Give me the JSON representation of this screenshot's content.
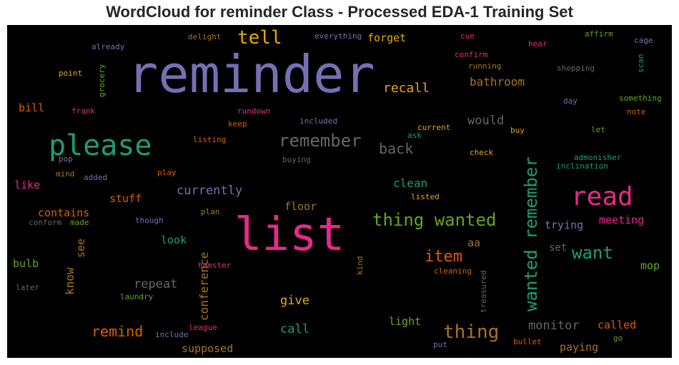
{
  "title": "WordCloud for reminder Class - Processed EDA-1 Training Set",
  "chart_data": {
    "type": "wordcloud",
    "background": "#000000",
    "palette": [
      "#7570b3",
      "#e7298a",
      "#1b9e77",
      "#66a61e",
      "#d95f02",
      "#e6ab02",
      "#a6761d",
      "#666666"
    ],
    "words": [
      {
        "text": "reminder"
      },
      {
        "text": "list"
      },
      {
        "text": "please"
      },
      {
        "text": "read"
      },
      {
        "text": "wanted remember"
      },
      {
        "text": "thing wanted"
      },
      {
        "text": "tell"
      },
      {
        "text": "remember"
      },
      {
        "text": "thing"
      },
      {
        "text": "item"
      },
      {
        "text": "want"
      },
      {
        "text": "back"
      },
      {
        "text": "recall"
      },
      {
        "text": "remind"
      },
      {
        "text": "currently"
      },
      {
        "text": "bathroom"
      },
      {
        "text": "would"
      },
      {
        "text": "forget"
      },
      {
        "text": "repeat"
      },
      {
        "text": "give"
      },
      {
        "text": "monitor"
      },
      {
        "text": "conference"
      },
      {
        "text": "clean"
      },
      {
        "text": "call"
      },
      {
        "text": "stuff"
      },
      {
        "text": "know"
      },
      {
        "text": "contains"
      },
      {
        "text": "see"
      },
      {
        "text": "look"
      },
      {
        "text": "trying"
      },
      {
        "text": "meeting"
      },
      {
        "text": "called"
      },
      {
        "text": "supposed"
      },
      {
        "text": "floor"
      },
      {
        "text": "light"
      },
      {
        "text": "paying"
      },
      {
        "text": "mop"
      },
      {
        "text": "like"
      },
      {
        "text": "bill"
      },
      {
        "text": "bulb"
      },
      {
        "text": "aa"
      },
      {
        "text": "set"
      },
      {
        "text": "everything"
      },
      {
        "text": "delight"
      },
      {
        "text": "already"
      },
      {
        "text": "point"
      },
      {
        "text": "grocery"
      },
      {
        "text": "frank"
      },
      {
        "text": "cue"
      },
      {
        "text": "confirm"
      },
      {
        "text": "running"
      },
      {
        "text": "affirm"
      },
      {
        "text": "hear"
      },
      {
        "text": "shopping"
      },
      {
        "text": "cage"
      },
      {
        "text": "scan"
      },
      {
        "text": "something"
      },
      {
        "text": "day"
      },
      {
        "text": "note"
      },
      {
        "text": "rundown"
      },
      {
        "text": "included"
      },
      {
        "text": "keep"
      },
      {
        "text": "current"
      },
      {
        "text": "buy"
      },
      {
        "text": "let"
      },
      {
        "text": "ask"
      },
      {
        "text": "listing"
      },
      {
        "text": "check"
      },
      {
        "text": "admonisher"
      },
      {
        "text": "inclination"
      },
      {
        "text": "pop"
      },
      {
        "text": "buying"
      },
      {
        "text": "mind"
      },
      {
        "text": "added"
      },
      {
        "text": "play"
      },
      {
        "text": "listed"
      },
      {
        "text": "conform"
      },
      {
        "text": "made"
      },
      {
        "text": "though"
      },
      {
        "text": "plan"
      },
      {
        "text": "hamster"
      },
      {
        "text": "kind"
      },
      {
        "text": "cleaning"
      },
      {
        "text": "treasured"
      },
      {
        "text": "later"
      },
      {
        "text": "laundry"
      },
      {
        "text": "league"
      },
      {
        "text": "include"
      },
      {
        "text": "bullet"
      },
      {
        "text": "go"
      },
      {
        "text": "put"
      }
    ]
  }
}
